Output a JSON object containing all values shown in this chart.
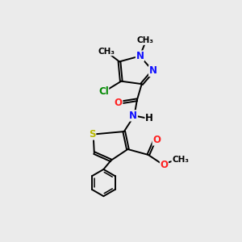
{
  "bg_color": "#ebebeb",
  "bond_color": "#000000",
  "bond_width": 1.4,
  "dbo": 0.06,
  "atoms": {
    "N": "#1010ff",
    "O": "#ff2020",
    "S": "#b8b800",
    "Cl": "#008800",
    "C": "#000000"
  },
  "fs": 8.5,
  "figsize": [
    3.0,
    3.0
  ],
  "dpi": 100,
  "xlim": [
    0,
    10
  ],
  "ylim": [
    0,
    10
  ]
}
